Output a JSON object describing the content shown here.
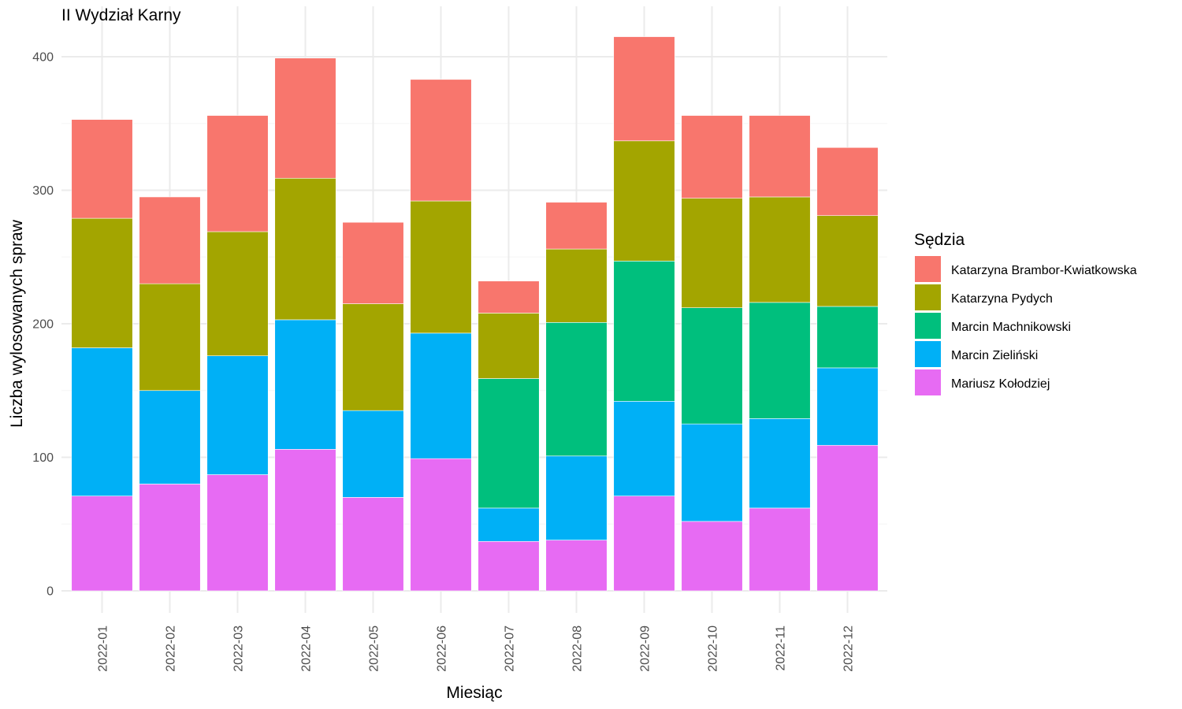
{
  "chart_data": {
    "type": "bar",
    "stacked": true,
    "title": "II Wydział Karny",
    "xlabel": "Miesiąc",
    "ylabel": "Liczba wylosowanych spraw",
    "ylim": [
      0,
      430
    ],
    "yticks": [
      0,
      100,
      200,
      300,
      400
    ],
    "grid": true,
    "legend_title": "Sędzia",
    "legend_position": "right",
    "categories": [
      "2022-01",
      "2022-02",
      "2022-03",
      "2022-04",
      "2022-05",
      "2022-06",
      "2022-07",
      "2022-08",
      "2022-09",
      "2022-10",
      "2022-11",
      "2022-12"
    ],
    "series": [
      {
        "name": "Katarzyna Brambor-Kwiatkowska",
        "color": "#F8766D",
        "values": [
          74,
          65,
          87,
          90,
          61,
          91,
          24,
          35,
          78,
          62,
          61,
          51
        ]
      },
      {
        "name": "Katarzyna Pydych",
        "color": "#A3A500",
        "values": [
          97,
          80,
          93,
          106,
          80,
          99,
          49,
          55,
          90,
          82,
          79,
          68
        ]
      },
      {
        "name": "Marcin Machnikowski",
        "color": "#00BF7D",
        "values": [
          0,
          0,
          0,
          0,
          0,
          0,
          97,
          100,
          105,
          87,
          87,
          46
        ]
      },
      {
        "name": "Marcin Zieliński",
        "color": "#00B0F6",
        "values": [
          111,
          70,
          89,
          97,
          65,
          94,
          25,
          63,
          71,
          73,
          67,
          58
        ]
      },
      {
        "name": "Mariusz Kołodziej",
        "color": "#E76BF3",
        "values": [
          71,
          80,
          87,
          106,
          70,
          99,
          37,
          38,
          71,
          52,
          62,
          109
        ]
      }
    ]
  }
}
